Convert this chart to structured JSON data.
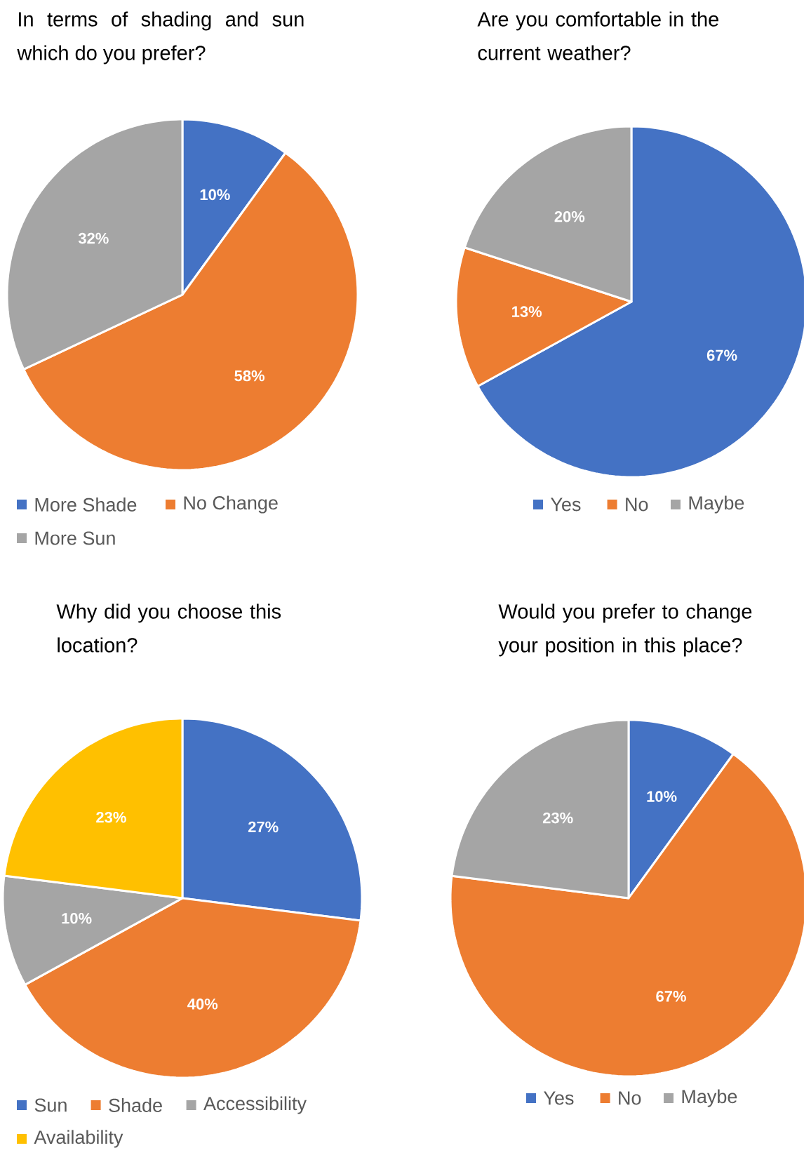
{
  "chart_data": [
    {
      "type": "pie",
      "title": "In terms of shading and sun which do you prefer?",
      "categories": [
        "More Shade",
        "No Change",
        "More Sun"
      ],
      "values": [
        10,
        58,
        32
      ],
      "value_labels": [
        "10%",
        "58%",
        "32%"
      ],
      "colors": [
        "#4472c4",
        "#ed7d31",
        "#a5a5a5"
      ],
      "legend": "bottom"
    },
    {
      "type": "pie",
      "title": "Are you comfortable in the current weather?",
      "categories": [
        "Yes",
        "No",
        "Maybe"
      ],
      "values": [
        67,
        13,
        20
      ],
      "value_labels": [
        "67%",
        "13%",
        "20%"
      ],
      "colors": [
        "#4472c4",
        "#ed7d31",
        "#a5a5a5"
      ],
      "legend": "bottom"
    },
    {
      "type": "pie",
      "title": "Why did you choose this location?",
      "categories": [
        "Sun",
        "Shade",
        "Accessibility",
        "Availability"
      ],
      "values": [
        27,
        40,
        10,
        23
      ],
      "value_labels": [
        "27%",
        "40%",
        "10%",
        "23%"
      ],
      "colors": [
        "#4472c4",
        "#ed7d31",
        "#a5a5a5",
        "#ffc000"
      ],
      "legend": "bottom"
    },
    {
      "type": "pie",
      "title": "Would you prefer to change your position in this place?",
      "categories": [
        "Yes",
        "No",
        "Maybe"
      ],
      "values": [
        10,
        67,
        23
      ],
      "value_labels": [
        "10%",
        "67%",
        "23%"
      ],
      "colors": [
        "#4472c4",
        "#ed7d31",
        "#a5a5a5"
      ],
      "legend": "bottom"
    }
  ]
}
